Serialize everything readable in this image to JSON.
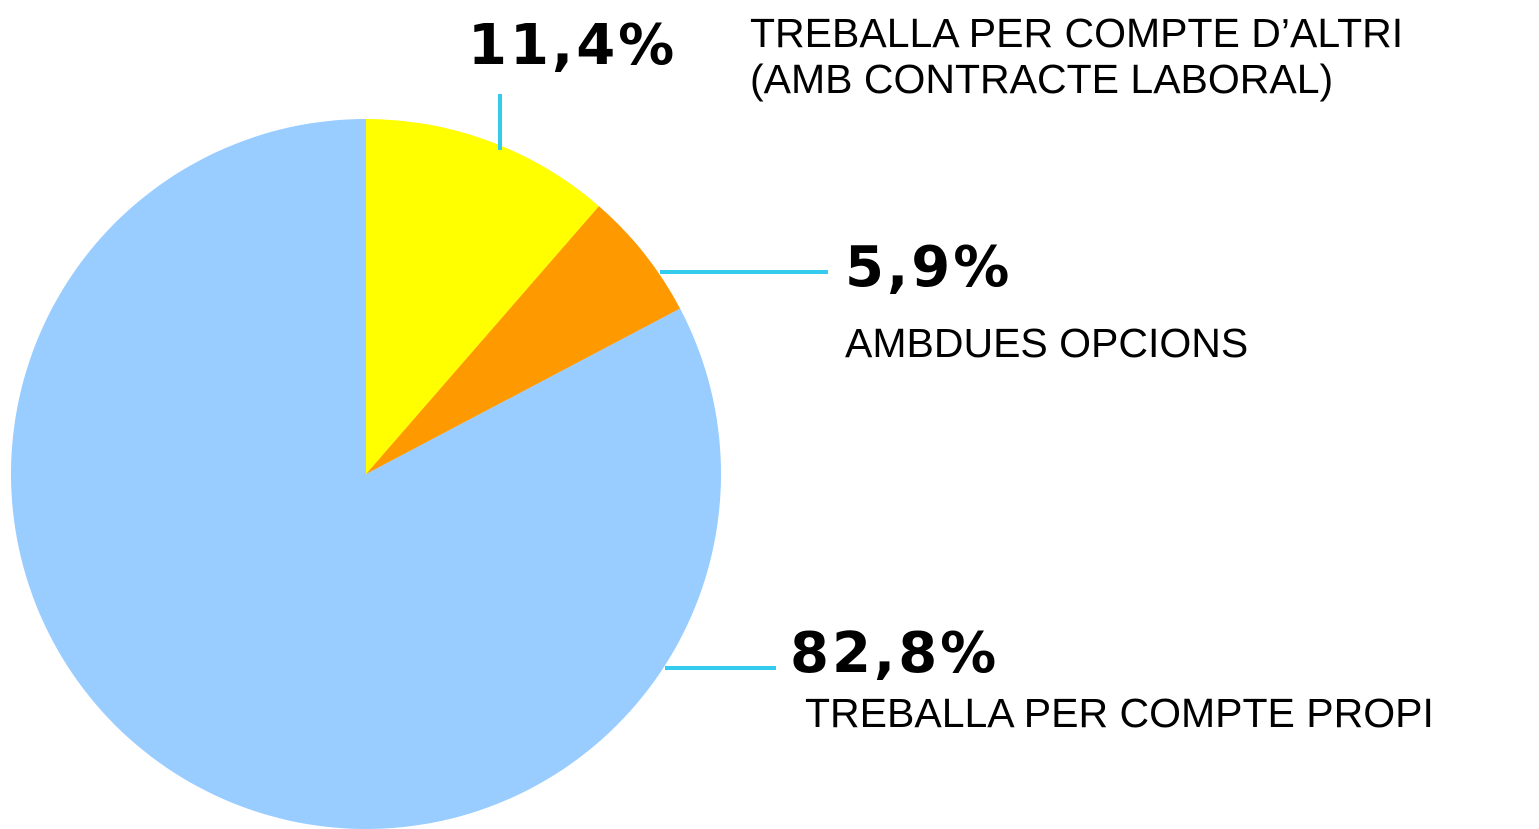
{
  "chart_data": {
    "type": "pie",
    "categories": [
      "TREBALLA PER COMPTE D’ALTRI\n(AMB CONTRACTE LABORAL)",
      "AMBDUES OPCIONS",
      "TREBALLA PER COMPTE PROPI"
    ],
    "values": [
      11.4,
      5.9,
      82.8
    ],
    "value_labels": [
      "11,4%",
      "5,9%",
      "82,8%"
    ],
    "colors": [
      "#ffff00",
      "#ff9900",
      "#99ccff"
    ]
  }
}
